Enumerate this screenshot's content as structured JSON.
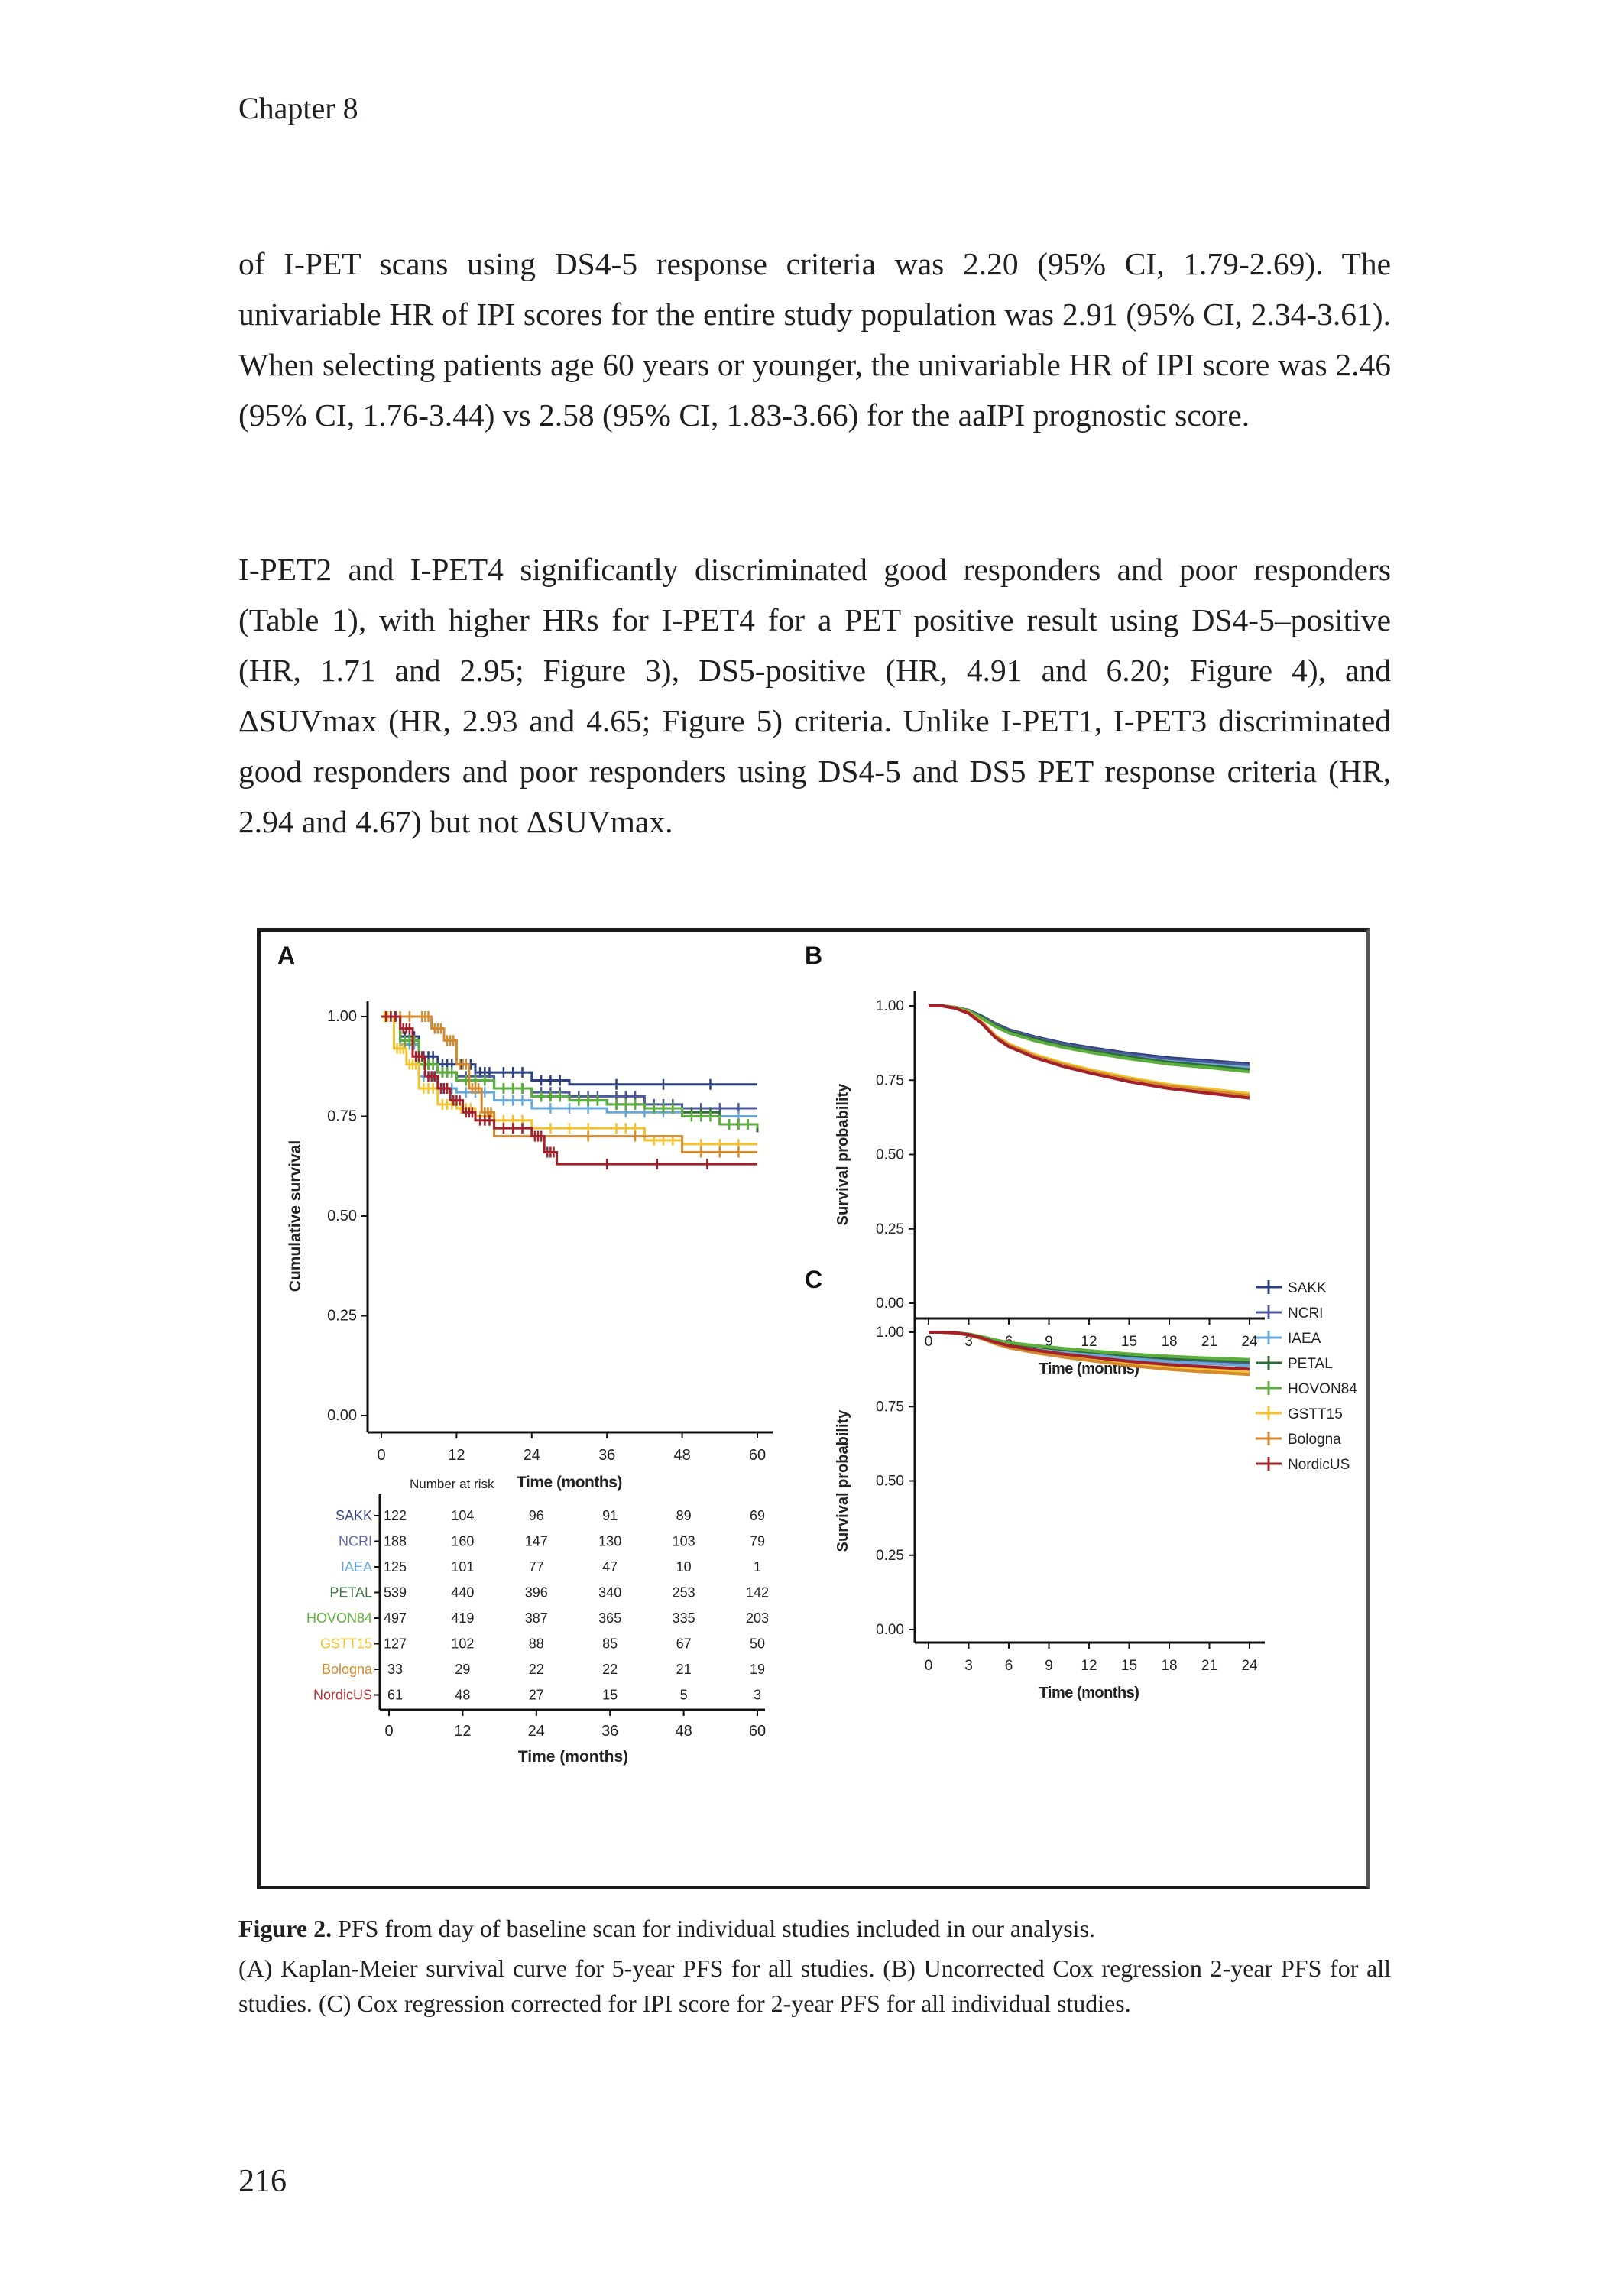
{
  "header": {
    "chapter": "Chapter 8"
  },
  "body": {
    "paragraph_1": "of I-PET scans using DS4-5 response criteria was 2.20 (95% CI, 1.79-2.69). The univariable HR of IPI scores for the entire study population was 2.91 (95% CI, 2.34-3.61). When selecting patients age 60 years or younger, the univariable HR of IPI score was 2.46 (95% CI, 1.76-3.44) vs 2.58 (95% CI, 1.83-3.66) for the aaIPI prognostic score.",
    "paragraph_2": "I-PET2 and I-PET4 significantly discriminated good responders and poor responders (Table 1), with higher HRs for I-PET4 for a PET positive result using DS4-5–positive (HR, 1.71 and 2.95; Figure 3), DS5-positive (HR, 4.91 and 6.20; Figure 4), and ΔSUVmax (HR, 2.93 and 4.65; Figure 5) criteria. Unlike I-PET1, I-PET3 discriminated good responders and poor responders using DS4-5 and DS5 PET response criteria (HR, 2.94 and 4.67) but not ΔSUVmax."
  },
  "caption": {
    "label": "Figure 2.",
    "title": " PFS from day of baseline scan for individual studies included in our analysis.",
    "description": "(A) Kaplan-Meier survival curve for 5-year PFS for all studies. (B) Uncorrected Cox regression 2-year PFS for all studies. (C) Cox regression corrected for IPI score for 2-year PFS for all individual studies."
  },
  "footer": {
    "page_number": "216"
  },
  "chart_data": [
    {
      "panel": "A",
      "type": "line",
      "subtype": "kaplan-meier step",
      "title": "",
      "xlabel": "Time (months)",
      "ylabel": "Cumulative survival",
      "xlim": [
        0,
        60
      ],
      "ylim": [
        0,
        1
      ],
      "x_ticks": [
        "0",
        "12",
        "24",
        "36",
        "48",
        "60"
      ],
      "y_ticks": [
        "0.00",
        "0.25",
        "0.50",
        "0.75",
        "1.00"
      ],
      "grid": false,
      "series": [
        {
          "name": "SAKK",
          "color": "#2b3f7e",
          "x": [
            0,
            3,
            6,
            9,
            12,
            15,
            18,
            24,
            30,
            60
          ],
          "y": [
            1.0,
            0.95,
            0.9,
            0.88,
            0.88,
            0.86,
            0.86,
            0.84,
            0.83,
            0.83
          ]
        },
        {
          "name": "NCRI",
          "color": "#4c5a9c",
          "x": [
            0,
            3,
            6,
            9,
            12,
            18,
            24,
            30,
            36,
            42,
            48,
            60
          ],
          "y": [
            1.0,
            0.94,
            0.88,
            0.86,
            0.85,
            0.82,
            0.81,
            0.8,
            0.8,
            0.78,
            0.77,
            0.77
          ]
        },
        {
          "name": "IAEA",
          "color": "#6aa8d8",
          "x": [
            0,
            3,
            6,
            9,
            12,
            18,
            24,
            36,
            48,
            60
          ],
          "y": [
            1.0,
            0.93,
            0.85,
            0.82,
            0.81,
            0.79,
            0.77,
            0.76,
            0.75,
            0.75
          ]
        },
        {
          "name": "PETAL",
          "color": "#2f6b3a",
          "x": [
            0,
            3,
            6,
            9,
            12,
            18,
            24,
            30,
            36,
            42,
            48,
            54,
            60
          ],
          "y": [
            1.0,
            0.94,
            0.88,
            0.86,
            0.84,
            0.82,
            0.8,
            0.79,
            0.78,
            0.77,
            0.76,
            0.73,
            0.71
          ]
        },
        {
          "name": "HOVON84",
          "color": "#5cae3e",
          "x": [
            0,
            3,
            6,
            9,
            12,
            18,
            24,
            30,
            36,
            42,
            48,
            54,
            60
          ],
          "y": [
            1.0,
            0.94,
            0.88,
            0.86,
            0.84,
            0.82,
            0.8,
            0.79,
            0.78,
            0.77,
            0.75,
            0.73,
            0.72
          ]
        },
        {
          "name": "GSTT15",
          "color": "#f2c230",
          "x": [
            0,
            2,
            4,
            6,
            9,
            12,
            15,
            18,
            24,
            36,
            42,
            48,
            60
          ],
          "y": [
            1.0,
            0.92,
            0.88,
            0.82,
            0.78,
            0.77,
            0.75,
            0.74,
            0.72,
            0.72,
            0.69,
            0.68,
            0.68
          ]
        },
        {
          "name": "Bologna",
          "color": "#d4892e",
          "x": [
            0,
            6,
            8,
            10,
            12,
            14,
            16,
            18,
            48,
            60
          ],
          "y": [
            1.0,
            1.0,
            0.97,
            0.94,
            0.88,
            0.82,
            0.76,
            0.7,
            0.66,
            0.66
          ]
        },
        {
          "name": "NordicUS",
          "color": "#a3212b",
          "x": [
            0,
            3,
            5,
            7,
            9,
            11,
            13,
            15,
            18,
            24,
            26,
            28,
            60
          ],
          "y": [
            1.0,
            0.97,
            0.9,
            0.85,
            0.82,
            0.79,
            0.76,
            0.74,
            0.72,
            0.7,
            0.66,
            0.63,
            0.63
          ]
        }
      ],
      "risk_table": {
        "title": "Number at risk",
        "times": [
          0,
          12,
          24,
          36,
          48,
          60
        ],
        "rows": [
          {
            "name": "SAKK",
            "color": "#3e4a85",
            "values": [
              122,
              104,
              96,
              91,
              89,
              69
            ]
          },
          {
            "name": "NCRI",
            "color": "#5d6aa8",
            "values": [
              188,
              160,
              147,
              130,
              103,
              79
            ]
          },
          {
            "name": "IAEA",
            "color": "#6aa8d8",
            "values": [
              125,
              101,
              77,
              47,
              10,
              1
            ]
          },
          {
            "name": "PETAL",
            "color": "#3f7249",
            "values": [
              539,
              440,
              396,
              340,
              253,
              142
            ]
          },
          {
            "name": "HOVON84",
            "color": "#5cae3e",
            "values": [
              497,
              419,
              387,
              365,
              335,
              203
            ]
          },
          {
            "name": "GSTT15",
            "color": "#f2c230",
            "values": [
              127,
              102,
              88,
              85,
              67,
              50
            ]
          },
          {
            "name": "Bologna",
            "color": "#d4892e",
            "values": [
              33,
              29,
              22,
              22,
              21,
              19
            ]
          },
          {
            "name": "NordicUS",
            "color": "#b0303a",
            "values": [
              61,
              48,
              27,
              15,
              5,
              3
            ]
          }
        ]
      }
    },
    {
      "panel": "B",
      "type": "line",
      "title": "",
      "xlabel": "Time (months)",
      "ylabel": "Survival probability",
      "xlim": [
        0,
        24
      ],
      "ylim": [
        0,
        1
      ],
      "x_ticks": [
        "0",
        "3",
        "6",
        "9",
        "12",
        "15",
        "18",
        "21",
        "24"
      ],
      "y_ticks": [
        "0.00",
        "0.25",
        "0.50",
        "0.75",
        "1.00"
      ],
      "grid": false,
      "legend": "right",
      "x": [
        0,
        1,
        2,
        3,
        4,
        5,
        6,
        8,
        10,
        12,
        15,
        18,
        21,
        24
      ],
      "series": [
        {
          "name": "SAKK",
          "color": "#2b3f7e",
          "values": [
            1.0,
            1.0,
            0.995,
            0.985,
            0.965,
            0.94,
            0.92,
            0.895,
            0.875,
            0.86,
            0.84,
            0.825,
            0.815,
            0.805
          ]
        },
        {
          "name": "NCRI",
          "color": "#4c5a9c",
          "values": [
            1.0,
            1.0,
            0.995,
            0.985,
            0.963,
            0.938,
            0.918,
            0.892,
            0.872,
            0.856,
            0.836,
            0.82,
            0.81,
            0.8
          ]
        },
        {
          "name": "IAEA",
          "color": "#6aa8d8",
          "values": [
            1.0,
            1.0,
            0.995,
            0.984,
            0.96,
            0.934,
            0.913,
            0.886,
            0.866,
            0.85,
            0.829,
            0.813,
            0.802,
            0.792
          ]
        },
        {
          "name": "PETAL",
          "color": "#2f6b3a",
          "values": [
            1.0,
            1.0,
            0.995,
            0.984,
            0.961,
            0.935,
            0.914,
            0.887,
            0.866,
            0.85,
            0.828,
            0.81,
            0.798,
            0.785
          ]
        },
        {
          "name": "HOVON84",
          "color": "#5cae3e",
          "values": [
            1.0,
            1.0,
            0.995,
            0.983,
            0.958,
            0.93,
            0.909,
            0.882,
            0.861,
            0.844,
            0.822,
            0.804,
            0.792,
            0.778
          ]
        },
        {
          "name": "GSTT15",
          "color": "#f2c230",
          "values": [
            1.0,
            1.0,
            0.993,
            0.978,
            0.945,
            0.9,
            0.872,
            0.835,
            0.808,
            0.786,
            0.758,
            0.735,
            0.72,
            0.705
          ]
        },
        {
          "name": "Bologna",
          "color": "#d4892e",
          "values": [
            1.0,
            1.0,
            0.993,
            0.977,
            0.943,
            0.897,
            0.868,
            0.83,
            0.803,
            0.781,
            0.752,
            0.73,
            0.714,
            0.698
          ]
        },
        {
          "name": "NordicUS",
          "color": "#a3212b",
          "values": [
            1.0,
            1.0,
            0.992,
            0.975,
            0.94,
            0.893,
            0.863,
            0.825,
            0.797,
            0.775,
            0.745,
            0.722,
            0.706,
            0.69
          ]
        }
      ]
    },
    {
      "panel": "C",
      "type": "line",
      "title": "",
      "xlabel": "Time (months)",
      "ylabel": "Survival probability",
      "xlim": [
        0,
        24
      ],
      "ylim": [
        0,
        1
      ],
      "x_ticks": [
        "0",
        "3",
        "6",
        "9",
        "12",
        "15",
        "18",
        "21",
        "24"
      ],
      "y_ticks": [
        "0.00",
        "0.25",
        "0.50",
        "0.75",
        "1.00"
      ],
      "grid": false,
      "x": [
        0,
        1,
        2,
        3,
        4,
        5,
        6,
        8,
        10,
        12,
        15,
        18,
        21,
        24
      ],
      "series": [
        {
          "name": "SAKK",
          "color": "#2b3f7e",
          "values": [
            1.0,
            1.0,
            0.998,
            0.993,
            0.984,
            0.971,
            0.962,
            0.95,
            0.94,
            0.931,
            0.918,
            0.909,
            0.903,
            0.898
          ]
        },
        {
          "name": "NCRI",
          "color": "#4c5a9c",
          "values": [
            1.0,
            1.0,
            0.998,
            0.993,
            0.983,
            0.97,
            0.96,
            0.947,
            0.936,
            0.927,
            0.914,
            0.904,
            0.897,
            0.892
          ]
        },
        {
          "name": "IAEA",
          "color": "#6aa8d8",
          "values": [
            1.0,
            1.0,
            0.998,
            0.993,
            0.983,
            0.969,
            0.959,
            0.946,
            0.935,
            0.925,
            0.911,
            0.901,
            0.894,
            0.888
          ]
        },
        {
          "name": "PETAL",
          "color": "#2f6b3a",
          "values": [
            1.0,
            1.0,
            0.998,
            0.993,
            0.984,
            0.972,
            0.963,
            0.952,
            0.942,
            0.934,
            0.922,
            0.913,
            0.907,
            0.902
          ]
        },
        {
          "name": "HOVON84",
          "color": "#5cae3e",
          "values": [
            1.0,
            1.0,
            0.998,
            0.994,
            0.985,
            0.974,
            0.965,
            0.955,
            0.946,
            0.938,
            0.927,
            0.919,
            0.913,
            0.908
          ]
        },
        {
          "name": "GSTT15",
          "color": "#f2c230",
          "values": [
            1.0,
            1.0,
            0.998,
            0.992,
            0.98,
            0.964,
            0.952,
            0.936,
            0.922,
            0.911,
            0.895,
            0.883,
            0.874,
            0.866
          ]
        },
        {
          "name": "Bologna",
          "color": "#d4892e",
          "values": [
            1.0,
            1.0,
            0.997,
            0.991,
            0.978,
            0.961,
            0.948,
            0.931,
            0.917,
            0.905,
            0.888,
            0.875,
            0.866,
            0.858
          ]
        },
        {
          "name": "NordicUS",
          "color": "#a3212b",
          "values": [
            1.0,
            1.0,
            0.998,
            0.992,
            0.981,
            0.966,
            0.955,
            0.94,
            0.927,
            0.917,
            0.902,
            0.891,
            0.883,
            0.876
          ]
        }
      ]
    }
  ],
  "figure": {
    "panel_labels": [
      "A",
      "B",
      "C"
    ],
    "risk_title": "Number at risk"
  }
}
